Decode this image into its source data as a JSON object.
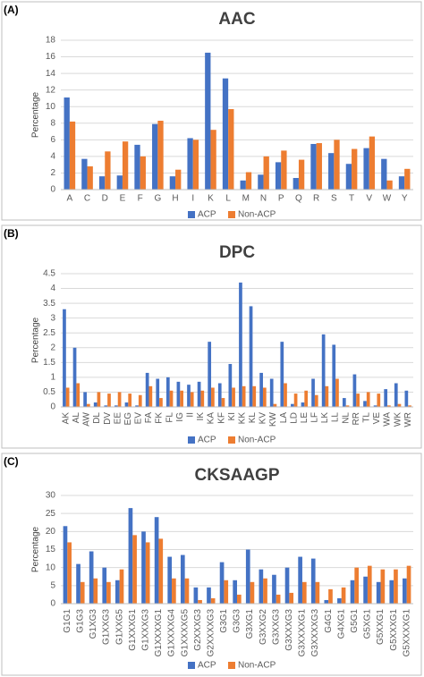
{
  "chart_data": [
    {
      "type": "bar",
      "label": "(A)",
      "title": "AAC",
      "y_label": "Percentage",
      "categories": [
        "A",
        "C",
        "D",
        "E",
        "F",
        "G",
        "H",
        "I",
        "K",
        "L",
        "M",
        "N",
        "P",
        "Q",
        "R",
        "S",
        "T",
        "V",
        "W",
        "Y"
      ],
      "series": [
        {
          "name": "ACP",
          "color": "#4472c4",
          "values": [
            11.1,
            3.7,
            1.6,
            1.7,
            5.4,
            7.9,
            1.6,
            6.2,
            16.5,
            13.4,
            1.1,
            1.8,
            3.3,
            1.4,
            5.5,
            4.4,
            3.1,
            5.0,
            3.7,
            1.6
          ]
        },
        {
          "name": "Non-ACP",
          "color": "#ed7d31",
          "values": [
            8.2,
            2.8,
            4.6,
            5.8,
            4.0,
            8.3,
            2.4,
            6.0,
            7.2,
            9.7,
            2.1,
            4.0,
            4.7,
            3.6,
            5.6,
            6.0,
            4.9,
            6.4,
            1.1,
            2.5
          ]
        }
      ],
      "ylim": [
        0,
        18
      ],
      "yticks": [
        0,
        2,
        4,
        6,
        8,
        10,
        12,
        14,
        16,
        18
      ],
      "grid": true
    },
    {
      "type": "bar",
      "label": "(B)",
      "title": "DPC",
      "y_label": "Percentage",
      "categories": [
        "AK",
        "AL",
        "AW",
        "DL",
        "DV",
        "EE",
        "EG",
        "EV",
        "FA",
        "FK",
        "FL",
        "IG",
        "II",
        "IK",
        "KA",
        "KF",
        "KI",
        "KK",
        "KL",
        "KV",
        "KW",
        "LA",
        "LD",
        "LE",
        "LF",
        "LK",
        "LL",
        "NL",
        "RR",
        "TL",
        "VE",
        "WA",
        "WK",
        "WR"
      ],
      "series": [
        {
          "name": "ACP",
          "color": "#4472c4",
          "values": [
            3.3,
            2.0,
            0.5,
            0.15,
            0.05,
            0.05,
            0.15,
            0.05,
            1.15,
            0.95,
            1.0,
            0.85,
            0.75,
            0.85,
            2.2,
            0.8,
            1.45,
            4.2,
            3.4,
            1.15,
            0.95,
            2.2,
            0.1,
            0.15,
            0.95,
            2.45,
            2.1,
            0.3,
            1.1,
            0.2,
            0.05,
            0.6,
            0.8,
            0.55
          ]
        },
        {
          "name": "Non-ACP",
          "color": "#ed7d31",
          "values": [
            0.65,
            0.8,
            0.1,
            0.5,
            0.45,
            0.5,
            0.45,
            0.4,
            0.7,
            0.3,
            0.55,
            0.55,
            0.5,
            0.55,
            0.65,
            0.3,
            0.65,
            0.7,
            0.7,
            0.65,
            0.1,
            0.8,
            0.45,
            0.55,
            0.4,
            0.7,
            0.95,
            0.05,
            0.45,
            0.5,
            0.45,
            0.05,
            0.1,
            0.05
          ]
        }
      ],
      "ylim": [
        0,
        4.5
      ],
      "yticks": [
        0,
        0.5,
        1,
        1.5,
        2,
        2.5,
        3,
        3.5,
        4,
        4.5
      ],
      "grid": true
    },
    {
      "type": "bar",
      "label": "(C)",
      "title": "CKSAAGP",
      "y_label": "Percentage",
      "categories": [
        "G1G1",
        "G1G3",
        "G1XG3",
        "G1XXG3",
        "G1XXG5",
        "G1XXXG1",
        "G1XXXG3",
        "G1XXXXG1",
        "G1XXXXG4",
        "G1XXXXG5",
        "G2XXXG3",
        "G2XXXXG3",
        "G3G1",
        "G3G3",
        "G3XG1",
        "G3XXG2",
        "G3XXG3",
        "G3XXXG3",
        "G3XXXXG1",
        "G3XXXXG3",
        "G4G1",
        "G4XG1",
        "G5G1",
        "G5XG1",
        "G5XXG1",
        "G5XXXG1",
        "G5XXXXG1"
      ],
      "series": [
        {
          "name": "ACP",
          "color": "#4472c4",
          "values": [
            21.5,
            11,
            14.5,
            10,
            6.5,
            26.5,
            20,
            24,
            13,
            13.5,
            4.5,
            4.5,
            11.5,
            6.5,
            15,
            9.5,
            8,
            10,
            13,
            12.5,
            1,
            1.5,
            6.5,
            7.5,
            6,
            6.5,
            7
          ]
        },
        {
          "name": "Non-ACP",
          "color": "#ed7d31",
          "values": [
            17,
            6,
            7,
            6,
            9.5,
            19,
            17,
            18,
            7,
            7,
            1,
            1.5,
            6.5,
            2.5,
            6,
            7,
            2.5,
            3,
            6,
            6,
            4,
            4.5,
            10,
            10.5,
            9.5,
            9.5,
            10.5
          ]
        }
      ],
      "ylim": [
        0,
        30
      ],
      "yticks": [
        0,
        5,
        10,
        15,
        20,
        25,
        30
      ],
      "grid": true
    }
  ]
}
